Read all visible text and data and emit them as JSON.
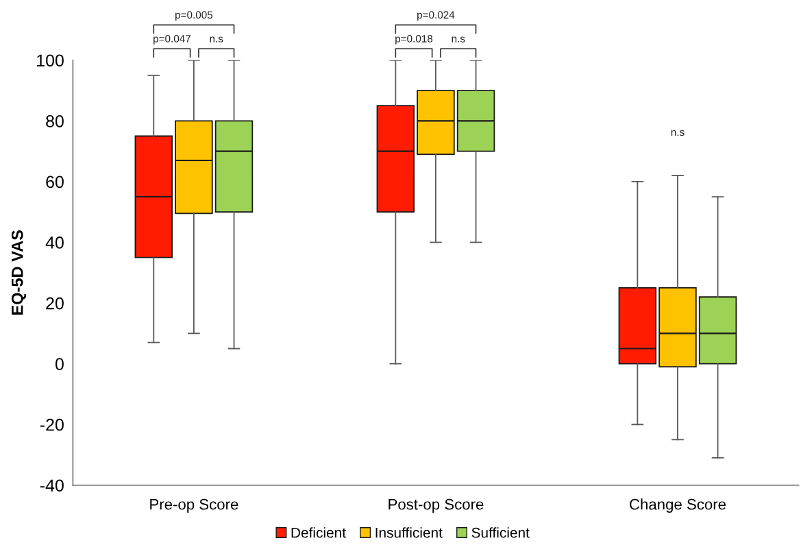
{
  "chart_data": {
    "type": "box",
    "ylabel": "EQ-5D VAS",
    "categories": [
      "Pre-op Score",
      "Post-op Score",
      "Change Score"
    ],
    "series": [
      {
        "name": "Deficient",
        "color": "#ff1c00",
        "boxes": [
          {
            "low": 7,
            "q1": 35,
            "median": 55,
            "q3": 75,
            "high": 95
          },
          {
            "low": 0,
            "q1": 50,
            "median": 70,
            "q3": 85,
            "high": 100
          },
          {
            "low": -20,
            "q1": 0,
            "median": 5,
            "q3": 25,
            "high": 60
          }
        ]
      },
      {
        "name": "Insufficient",
        "color": "#ffc200",
        "boxes": [
          {
            "low": 10,
            "q1": 49.5,
            "median": 67,
            "q3": 80,
            "high": 100
          },
          {
            "low": 40,
            "q1": 69,
            "median": 80,
            "q3": 90,
            "high": 100
          },
          {
            "low": -25,
            "q1": -1,
            "median": 10,
            "q3": 25,
            "high": 62
          }
        ]
      },
      {
        "name": "Sufficient",
        "color": "#9cd356",
        "boxes": [
          {
            "low": 5,
            "q1": 50,
            "median": 70,
            "q3": 80,
            "high": 100
          },
          {
            "low": 40,
            "q1": 70,
            "median": 80,
            "q3": 90,
            "high": 100
          },
          {
            "low": -31,
            "q1": 0,
            "median": 10,
            "q3": 22,
            "high": 55
          }
        ]
      }
    ],
    "ylim": [
      -40,
      100
    ],
    "yticks": [
      -40,
      -20,
      0,
      20,
      40,
      60,
      80,
      100
    ],
    "legend": "bottom",
    "annotations": [
      "p=0.005",
      "p=0.047",
      "n.s",
      "p=0.024",
      "p=0.018",
      "n.s",
      "n.s"
    ]
  }
}
